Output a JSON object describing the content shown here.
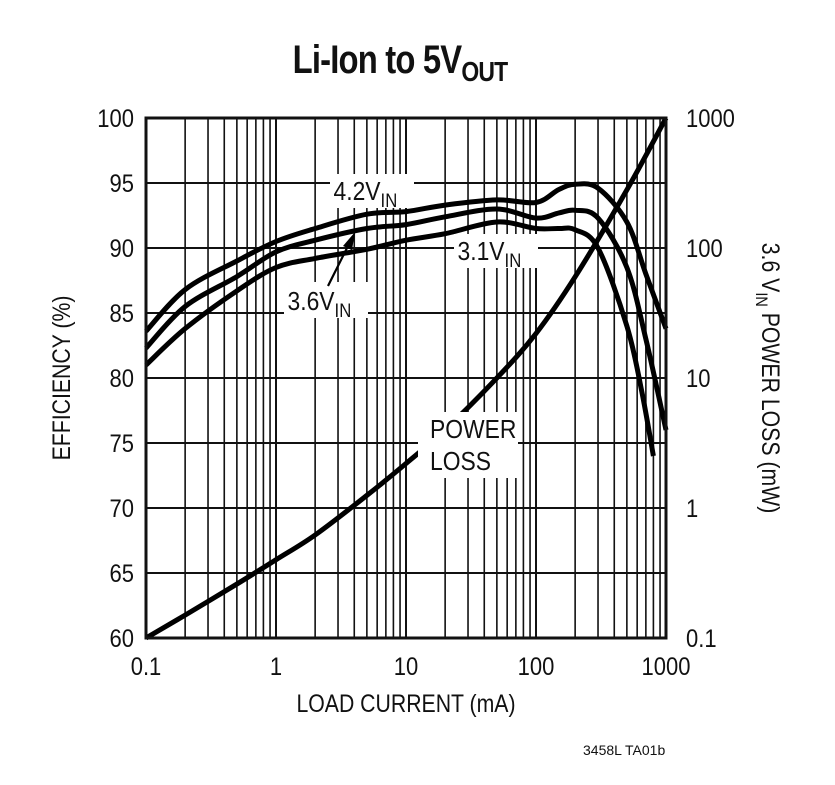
{
  "chart_data": {
    "type": "line",
    "title": "Li-Ion to 5V",
    "title_subscript": "OUT",
    "xlabel": "LOAD CURRENT (mA)",
    "ylabel": "EFFICIENCY (%)",
    "y2label_prefix": "3.6 V",
    "y2label_sub": "IN",
    "y2label_suffix": " POWER LOSS (mW)",
    "xscale": "log",
    "xlim": [
      0.1,
      1000
    ],
    "ylim": [
      60,
      100
    ],
    "y2scale": "log",
    "y2lim": [
      0.1,
      1000
    ],
    "grid": true,
    "x_ticks": [
      "0.1",
      "1",
      "10",
      "100",
      "1000"
    ],
    "y_ticks": [
      "60",
      "65",
      "70",
      "75",
      "80",
      "85",
      "90",
      "95",
      "100"
    ],
    "y2_ticks": [
      "0.1",
      "1",
      "10",
      "100",
      "1000"
    ],
    "series": [
      {
        "name": "4.2V_IN",
        "label_main": "4.2V",
        "label_sub": "IN",
        "axis": "left",
        "x": [
          0.1,
          0.2,
          0.5,
          1,
          2,
          5,
          10,
          20,
          50,
          100,
          150,
          200,
          300,
          500,
          700,
          1000
        ],
        "y": [
          83.6,
          86.8,
          89.0,
          90.5,
          91.5,
          92.6,
          92.8,
          93.3,
          93.7,
          93.5,
          94.5,
          94.9,
          94.6,
          92.0,
          88.0,
          83.8
        ]
      },
      {
        "name": "3.6V_IN",
        "label_main": "3.6V",
        "label_sub": "IN",
        "axis": "left",
        "x": [
          0.1,
          0.2,
          0.5,
          1,
          2,
          5,
          10,
          20,
          50,
          100,
          150,
          200,
          300,
          500,
          700,
          1000
        ],
        "y": [
          82.3,
          85.5,
          87.8,
          89.7,
          90.6,
          91.5,
          91.8,
          92.4,
          93.0,
          92.3,
          92.7,
          92.9,
          92.3,
          88.5,
          83.0,
          76.0
        ]
      },
      {
        "name": "3.1V_IN",
        "label_main": "3.1V",
        "label_sub": "IN",
        "axis": "left",
        "x": [
          0.1,
          0.2,
          0.5,
          1,
          2,
          5,
          10,
          20,
          50,
          100,
          150,
          200,
          300,
          500,
          650,
          800
        ],
        "y": [
          81.0,
          83.8,
          86.7,
          88.5,
          89.2,
          89.9,
          90.6,
          91.1,
          92.0,
          91.5,
          91.5,
          91.4,
          90.0,
          84.0,
          79.0,
          74.0
        ]
      },
      {
        "name": "POWER LOSS",
        "label_line1": "POWER",
        "label_line2": "LOSS",
        "axis": "right",
        "x": [
          0.1,
          0.2,
          0.5,
          1,
          2,
          5,
          10,
          20,
          50,
          100,
          200,
          500,
          1000
        ],
        "y": [
          0.1,
          0.15,
          0.26,
          0.4,
          0.62,
          1.25,
          2.2,
          4.0,
          10,
          22,
          60,
          280,
          1000
        ]
      }
    ],
    "annotations": [
      "4.2V_IN",
      "3.6V_IN (arrow)",
      "3.1V_IN",
      "POWER LOSS"
    ],
    "footnote": "3458L TA01b"
  }
}
